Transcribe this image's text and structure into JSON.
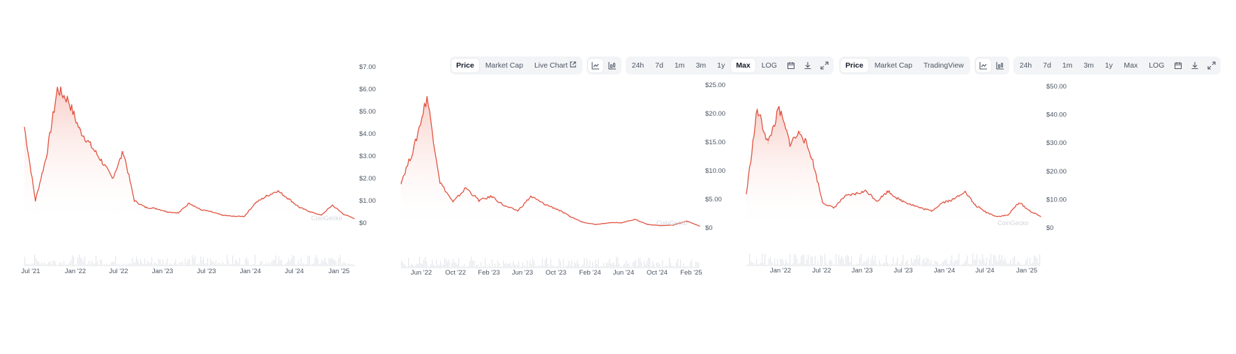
{
  "panels": [
    {
      "toolbar": null,
      "watermark": "CoinGecko",
      "x_ticks": [
        "Jul '21",
        "Jan '22",
        "Jul '22",
        "Jan '23",
        "Jul '23",
        "Jan '24",
        "Jul '24",
        "Jan '25"
      ],
      "y_ticks": [
        "$7.00",
        "$6.00",
        "$5.00",
        "$4.00",
        "$3.00",
        "$2.00",
        "$1.00",
        "$0"
      ]
    },
    {
      "toolbar": {
        "tabs": [
          "Price",
          "Market Cap",
          "Live Chart"
        ],
        "active_tab": "Price",
        "chart_icons": [
          "line-chart-icon",
          "candlestick-chart-icon"
        ],
        "ranges": [
          "24h",
          "7d",
          "1m",
          "3m",
          "1y",
          "Max",
          "LOG"
        ],
        "active_range": "Max",
        "tool_icons": [
          "calendar-icon",
          "download-icon",
          "expand-icon"
        ]
      },
      "watermark": "CoinGecko",
      "x_ticks": [
        "Jun '22",
        "Oct '22",
        "Feb '23",
        "Jun '23",
        "Oct '23",
        "Feb '24",
        "Jun '24",
        "Oct '24",
        "Feb '25"
      ],
      "y_ticks": [
        "$25.00",
        "$20.00",
        "$15.00",
        "$10.00",
        "$5.00",
        "$0"
      ]
    },
    {
      "toolbar": {
        "tabs": [
          "Price",
          "Market Cap",
          "TradingView"
        ],
        "active_tab": "Price",
        "chart_icons": [
          "line-chart-icon",
          "candlestick-chart-icon"
        ],
        "ranges": [
          "24h",
          "7d",
          "1m",
          "3m",
          "1y",
          "Max",
          "LOG"
        ],
        "active_range": "",
        "tool_icons": [
          "calendar-icon",
          "download-icon",
          "expand-icon"
        ]
      },
      "watermark": "CoinGecko",
      "x_ticks": [
        "Jan '22",
        "Jul '22",
        "Jan '23",
        "Jul '23",
        "Jan '24",
        "Jul '24",
        "Jan '25"
      ],
      "y_ticks": [
        "$50.00",
        "$40.00",
        "$30.00",
        "$20.00",
        "$10.00",
        "$0"
      ]
    }
  ],
  "colors": {
    "line": "#e0523f",
    "fill_top": "#f7c9c2",
    "fill_bottom": "#ffffff",
    "volume": "#e5e7eb",
    "text": "#4b5563"
  },
  "chart_data": [
    {
      "type": "area",
      "ylim": [
        0,
        7
      ],
      "x": [
        "Jun '21",
        "Jul '21",
        "Sep '21",
        "Nov '21",
        "Dec '21",
        "Jan '22",
        "Feb '22",
        "Mar '22",
        "Apr '22",
        "May '22",
        "Jun '22",
        "Jul '22",
        "Sep '22",
        "Nov '22",
        "Jan '23",
        "Feb '23",
        "Mar '23",
        "May '23",
        "Jul '23",
        "Sep '23",
        "Nov '23",
        "Dec '23",
        "Jan '24",
        "Mar '24",
        "Apr '24",
        "Jun '24",
        "Aug '24",
        "Oct '24",
        "Dec '24",
        "Jan '25",
        "Feb '25"
      ],
      "series": [
        {
          "values": [
            4.3,
            1.0,
            3.0,
            6.0,
            5.5,
            4.2,
            3.5,
            2.8,
            2.0,
            3.2,
            1.0,
            0.7,
            0.65,
            0.5,
            0.45,
            0.9,
            0.6,
            0.5,
            0.35,
            0.3,
            0.3,
            0.9,
            1.2,
            1.45,
            1.1,
            0.7,
            0.5,
            0.35,
            0.8,
            0.4,
            0.2
          ]
        }
      ]
    },
    {
      "type": "area",
      "ylim": [
        0,
        25
      ],
      "x": [
        "Apr '22",
        "May '22",
        "May '22",
        "Jun '22",
        "Jul '22",
        "Aug '22",
        "Sep '22",
        "Oct '22",
        "Nov '22",
        "Dec '22",
        "Feb '23",
        "Mar '23",
        "May '23",
        "Jun '23",
        "Aug '23",
        "Oct '23",
        "Dec '23",
        "Feb '24",
        "Apr '24",
        "Jun '24",
        "Aug '24",
        "Oct '24",
        "Dec '24",
        "Feb '25"
      ],
      "series": [
        {
          "values": [
            8,
            14,
            23,
            8,
            4.5,
            7,
            4.8,
            5.5,
            3.8,
            3,
            5.5,
            4.2,
            3.3,
            2,
            1,
            0.6,
            0.9,
            0.9,
            1.5,
            0.6,
            0.4,
            0.5,
            1.2,
            0.3
          ]
        }
      ]
    },
    {
      "type": "area",
      "ylim": [
        0,
        50
      ],
      "x": [
        "Sep '21",
        "Oct '21",
        "Nov '21",
        "Dec '21",
        "Jan '22",
        "Feb '22",
        "Mar '22",
        "Apr '22",
        "May '22",
        "Jun '22",
        "Aug '22",
        "Oct '22",
        "Dec '22",
        "Feb '23",
        "Apr '23",
        "Jun '23",
        "Aug '23",
        "Oct '23",
        "Dec '23",
        "Feb '24",
        "Mar '24",
        "May '24",
        "Jul '24",
        "Sep '24",
        "Nov '24",
        "Dec '24",
        "Jan '25",
        "Feb '25"
      ],
      "series": [
        {
          "values": [
            12,
            42,
            30,
            42,
            30,
            34,
            25,
            9,
            7,
            11,
            12,
            13,
            9.5,
            13,
            10,
            8.5,
            7,
            6,
            9,
            10,
            13,
            8,
            5.5,
            4,
            4.5,
            9,
            6,
            4
          ]
        }
      ]
    }
  ]
}
